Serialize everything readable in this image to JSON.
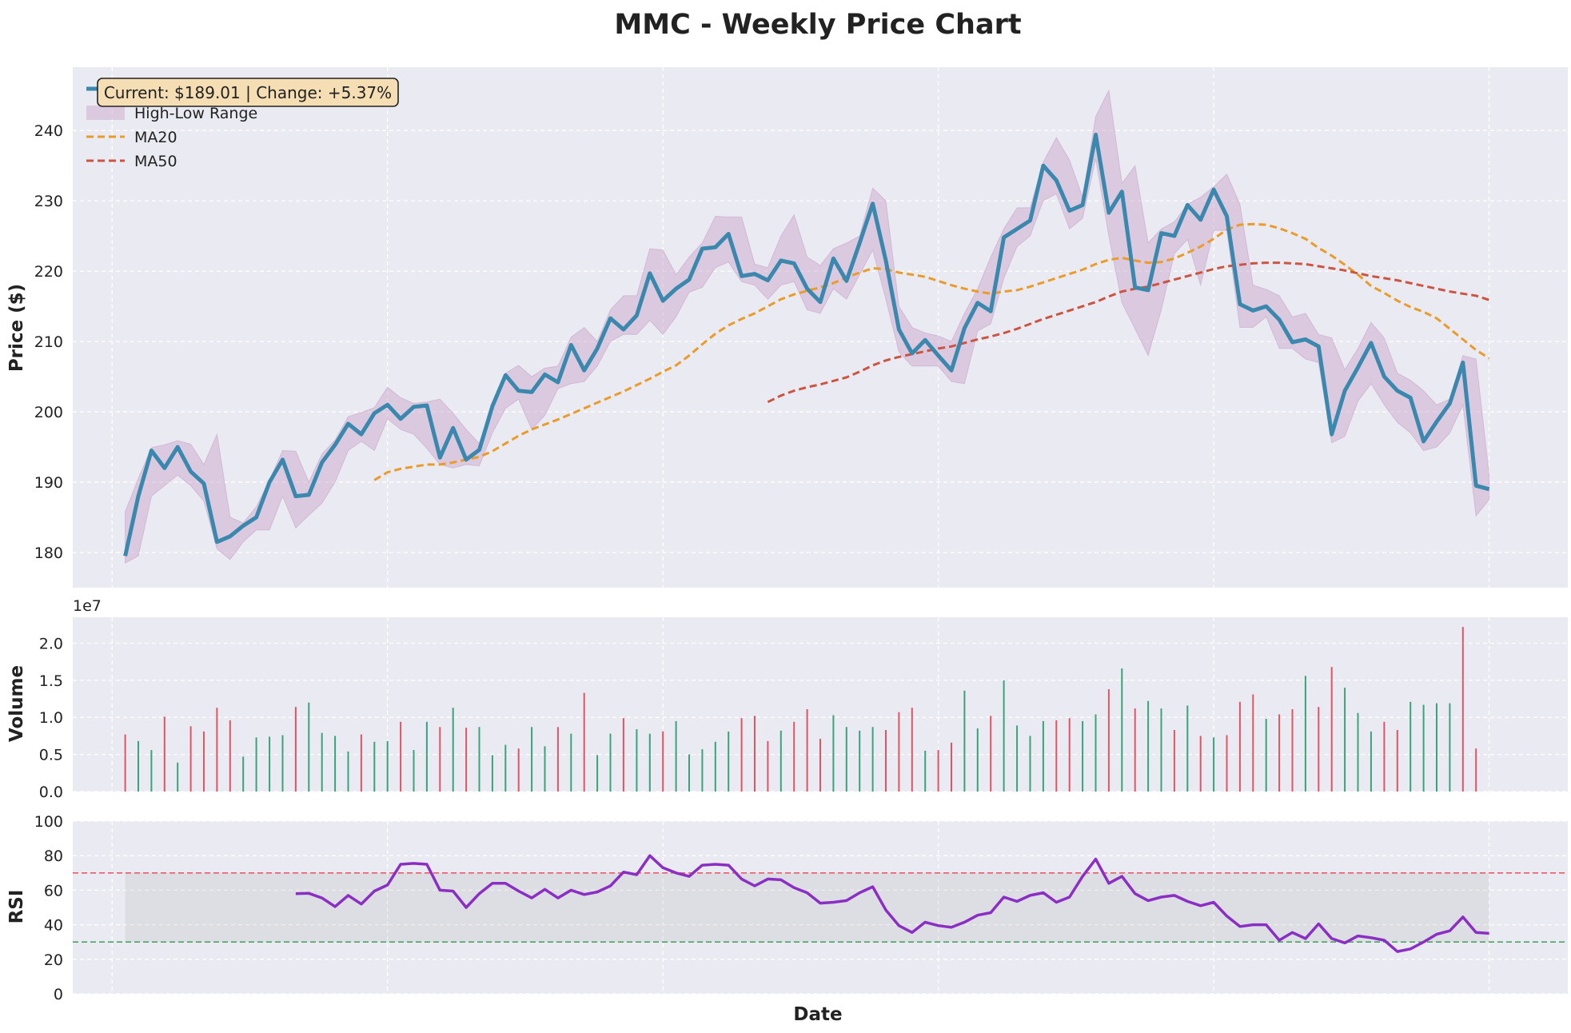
{
  "figure": {
    "title": "MMC - Weekly Price Chart",
    "xlabel": "Date",
    "info_box": "Current: $189.01 | Change: +5.37%"
  },
  "colors": {
    "background": "#eaeaf2",
    "grid": "#ffffff",
    "close": "#3a88ad",
    "range_fill": "#c7a2c7",
    "ma20": "#eb9b28",
    "ma50": "#cd5440",
    "volume_up": "#3aa37a",
    "volume_down": "#e05563",
    "rsi": "#8b2fc4",
    "overbought": "#ee5a6a",
    "oversold": "#4aa85e",
    "info_box_fill": "#f5deb3"
  },
  "legend": {
    "placement": "upper-left",
    "items": [
      "Close Price",
      "High-Low Range",
      "MA20",
      "MA50"
    ]
  },
  "chart_data": [
    {
      "type": "line",
      "panel": "price",
      "ylabel": "Price ($)",
      "ylim": [
        175,
        249
      ],
      "yticks": [
        180,
        190,
        200,
        210,
        220,
        230,
        240
      ],
      "x_index_range": [
        -4,
        110
      ],
      "series": [
        {
          "name": "Close Price",
          "values": [
            179.5,
            188.0,
            194.5,
            192.0,
            195.0,
            191.5,
            189.8,
            181.5,
            182.3,
            183.8,
            185.0,
            190.0,
            193.2,
            188.0,
            188.2,
            192.8,
            195.3,
            198.3,
            196.8,
            199.8,
            201.0,
            199.0,
            200.7,
            200.9,
            193.5,
            197.7,
            193.2,
            194.6,
            200.8,
            205.2,
            203.0,
            202.8,
            205.3,
            204.2,
            209.5,
            205.9,
            209.0,
            213.3,
            211.7,
            213.7,
            219.7,
            215.8,
            217.5,
            218.8,
            223.2,
            223.4,
            225.3,
            219.3,
            219.6,
            218.7,
            221.5,
            221.1,
            217.5,
            215.6,
            221.8,
            218.6,
            224.0,
            229.6,
            221.5,
            211.7,
            208.3,
            210.2,
            208.0,
            205.9,
            211.9,
            215.5,
            214.3,
            224.8,
            226.0,
            227.2,
            235.0,
            232.9,
            228.6,
            229.4,
            239.4,
            228.3,
            231.3,
            217.7,
            217.3,
            225.4,
            225.0,
            229.4,
            227.3,
            231.6,
            227.8,
            215.3,
            214.4,
            215.0,
            213.1,
            209.9,
            210.3,
            209.3,
            196.8,
            203.0,
            206.3,
            209.8,
            205.0,
            203.0,
            202.0,
            195.8,
            198.6,
            201.2,
            207.0,
            189.5,
            189.0
          ]
        },
        {
          "name": "High-Low Range",
          "high": [
            185.8,
            190.5,
            194.9,
            195.3,
            195.9,
            195.4,
            192.5,
            196.8,
            185.0,
            184.2,
            186.5,
            190.3,
            194.5,
            194.4,
            190.0,
            194.0,
            196.0,
            199.3,
            199.9,
            200.6,
            203.5,
            202.0,
            201.2,
            201.4,
            201.8,
            199.8,
            197.5,
            195.5,
            201.0,
            205.5,
            206.6,
            205.0,
            206.2,
            206.5,
            210.6,
            212.0,
            210.0,
            214.5,
            216.5,
            216.5,
            223.2,
            223.0,
            219.5,
            222.0,
            224.0,
            227.8,
            227.7,
            227.7,
            221.0,
            220.5,
            225.0,
            228.0,
            222.0,
            220.8,
            223.2,
            224.0,
            225.0,
            231.8,
            230.0,
            215.0,
            212.0,
            211.2,
            210.8,
            210.0,
            214.0,
            217.5,
            222.0,
            226.0,
            229.0,
            229.0,
            235.5,
            239.0,
            235.8,
            230.5,
            242.0,
            245.7,
            232.5,
            235.0,
            224.0,
            226.0,
            227.0,
            229.5,
            230.5,
            232.0,
            233.8,
            229.5,
            218.0,
            217.4,
            216.5,
            213.5,
            214.0,
            211.0,
            210.5,
            206.0,
            209.0,
            212.7,
            210.5,
            205.5,
            204.5,
            203.0,
            201.0,
            201.8,
            208.0,
            207.5,
            191.0
          ]
        },
        {
          "name": "High-Low Range",
          "low": [
            178.5,
            179.5,
            188.0,
            189.5,
            191.0,
            189.5,
            187.3,
            180.5,
            179.0,
            181.5,
            183.2,
            183.2,
            188.0,
            183.5,
            185.3,
            187.0,
            190.0,
            194.5,
            195.8,
            194.5,
            199.0,
            197.5,
            196.8,
            194.8,
            192.5,
            192.0,
            192.5,
            192.3,
            197.0,
            200.5,
            201.8,
            197.5,
            199.5,
            203.3,
            204.0,
            204.3,
            206.5,
            210.0,
            211.0,
            211.0,
            213.0,
            211.0,
            213.5,
            217.0,
            217.7,
            220.5,
            221.3,
            218.5,
            218.0,
            216.0,
            218.0,
            218.5,
            214.5,
            214.0,
            217.5,
            216.0,
            219.5,
            223.0,
            216.0,
            208.5,
            206.5,
            206.5,
            206.5,
            204.3,
            204.0,
            211.5,
            212.5,
            219.0,
            223.5,
            225.0,
            230.0,
            231.0,
            226.0,
            227.5,
            236.0,
            225.0,
            215.5,
            211.8,
            208.0,
            214.5,
            222.5,
            224.5,
            218.0,
            225.8,
            225.8,
            212.0,
            212.0,
            213.5,
            209.0,
            209.0,
            207.5,
            207.0,
            195.6,
            196.5,
            201.5,
            204.0,
            201.0,
            198.5,
            197.0,
            194.5,
            195.0,
            197.0,
            201.0,
            185.2,
            187.5
          ]
        },
        {
          "name": "MA20",
          "values": [
            null,
            null,
            null,
            null,
            null,
            null,
            null,
            null,
            null,
            null,
            null,
            null,
            null,
            null,
            null,
            null,
            null,
            null,
            null,
            190.3,
            191.4,
            191.9,
            192.2,
            192.5,
            192.5,
            192.8,
            193.2,
            193.6,
            194.4,
            195.5,
            196.6,
            197.5,
            198.2,
            198.9,
            199.7,
            200.5,
            201.3,
            202.1,
            202.9,
            203.8,
            204.7,
            205.7,
            206.6,
            208.0,
            209.6,
            211.1,
            212.3,
            213.2,
            214.0,
            215.0,
            216.0,
            216.7,
            217.2,
            217.7,
            218.3,
            219.1,
            219.8,
            220.4,
            220.3,
            219.8,
            219.5,
            219.2,
            218.6,
            218.0,
            217.5,
            217.1,
            216.8,
            217.1,
            217.3,
            217.8,
            218.4,
            219.0,
            219.6,
            220.2,
            221.0,
            221.6,
            221.9,
            221.5,
            221.2,
            221.3,
            221.8,
            222.6,
            223.5,
            224.6,
            225.9,
            226.6,
            226.7,
            226.6,
            226.1,
            225.4,
            224.6,
            223.3,
            222.2,
            220.9,
            219.5,
            217.9,
            216.9,
            215.8,
            214.9,
            214.2,
            213.3,
            211.8,
            210.3,
            208.8,
            207.6
          ]
        },
        {
          "name": "MA50",
          "values": [
            null,
            null,
            null,
            null,
            null,
            null,
            null,
            null,
            null,
            null,
            null,
            null,
            null,
            null,
            null,
            null,
            null,
            null,
            null,
            null,
            null,
            null,
            null,
            null,
            null,
            null,
            null,
            null,
            null,
            null,
            null,
            null,
            null,
            null,
            null,
            null,
            null,
            null,
            null,
            null,
            null,
            null,
            null,
            null,
            null,
            null,
            null,
            null,
            null,
            201.4,
            202.3,
            203.0,
            203.5,
            203.9,
            204.4,
            204.9,
            205.7,
            206.6,
            207.3,
            207.8,
            208.2,
            208.6,
            209.0,
            209.3,
            209.8,
            210.3,
            210.7,
            211.2,
            211.8,
            212.5,
            213.2,
            213.8,
            214.4,
            215.0,
            215.6,
            216.4,
            217.1,
            217.5,
            217.8,
            218.3,
            218.8,
            219.3,
            219.8,
            220.3,
            220.7,
            220.9,
            221.1,
            221.2,
            221.2,
            221.1,
            221.0,
            220.7,
            220.4,
            220.1,
            219.7,
            219.3,
            219.0,
            218.7,
            218.3,
            217.9,
            217.5,
            217.1,
            216.8,
            216.5,
            215.9
          ]
        }
      ]
    },
    {
      "type": "bar",
      "panel": "volume",
      "ylabel": "Volume",
      "scale_label": "1e7",
      "ylim": [
        0,
        2.35
      ],
      "yticks": [
        0.0,
        0.5,
        1.0,
        1.5,
        2.0
      ],
      "x_index_range": [
        -4,
        110
      ],
      "values": [
        0.77,
        0.68,
        0.56,
        1.01,
        0.39,
        0.88,
        0.81,
        1.13,
        0.96,
        0.47,
        0.73,
        0.74,
        0.76,
        1.14,
        1.2,
        0.79,
        0.75,
        0.54,
        0.77,
        0.67,
        0.68,
        0.94,
        0.56,
        0.94,
        0.87,
        1.13,
        0.86,
        0.87,
        0.49,
        0.63,
        0.58,
        0.87,
        0.61,
        0.87,
        0.78,
        1.33,
        0.49,
        0.78,
        0.99,
        0.84,
        0.78,
        0.81,
        0.95,
        0.5,
        0.57,
        0.67,
        0.81,
        0.99,
        1.02,
        0.68,
        0.82,
        0.94,
        1.11,
        0.71,
        1.03,
        0.87,
        0.82,
        0.87,
        0.83,
        1.07,
        1.13,
        0.55,
        0.56,
        0.66,
        1.36,
        0.85,
        1.02,
        1.5,
        0.89,
        0.75,
        0.95,
        0.96,
        0.99,
        0.95,
        1.04,
        1.38,
        1.66,
        1.12,
        1.22,
        1.12,
        0.83,
        1.16,
        0.75,
        0.73,
        0.76,
        1.21,
        1.31,
        0.98,
        1.04,
        1.11,
        1.56,
        1.14,
        1.68,
        1.4,
        1.06,
        0.81,
        0.94,
        0.83,
        1.21,
        1.17,
        1.19,
        1.19,
        2.22,
        0.58
      ],
      "direction": [
        "down",
        "up",
        "up",
        "down",
        "up",
        "down",
        "down",
        "down",
        "down",
        "up",
        "up",
        "up",
        "up",
        "down",
        "up",
        "up",
        "up",
        "up",
        "down",
        "up",
        "up",
        "down",
        "up",
        "up",
        "down",
        "up",
        "down",
        "up",
        "up",
        "up",
        "down",
        "up",
        "up",
        "down",
        "up",
        "down",
        "up",
        "up",
        "down",
        "up",
        "up",
        "down",
        "up",
        "up",
        "up",
        "up",
        "up",
        "down",
        "down",
        "down",
        "up",
        "down",
        "down",
        "down",
        "up",
        "up",
        "up",
        "up",
        "down",
        "down",
        "down",
        "up",
        "down",
        "down",
        "up",
        "up",
        "down",
        "up",
        "up",
        "up",
        "up",
        "down",
        "down",
        "up",
        "up",
        "down",
        "up",
        "down",
        "up",
        "up",
        "down",
        "up",
        "down",
        "up",
        "down",
        "down",
        "down",
        "up",
        "down",
        "down",
        "up",
        "down",
        "down",
        "up",
        "up",
        "up",
        "down",
        "down",
        "up",
        "up",
        "up",
        "up",
        "down",
        "down"
      ]
    },
    {
      "type": "line",
      "panel": "rsi",
      "ylabel": "RSI",
      "ylim": [
        0,
        100
      ],
      "yticks": [
        0,
        20,
        40,
        60,
        80,
        100
      ],
      "overbought": 70,
      "oversold": 30,
      "x_index_range": [
        -4,
        110
      ],
      "series": [
        {
          "name": "RSI",
          "values": [
            null,
            null,
            null,
            null,
            null,
            null,
            null,
            null,
            null,
            null,
            null,
            null,
            null,
            58.0,
            58.2,
            55.5,
            50.5,
            57.0,
            52.0,
            59.5,
            63.0,
            75.0,
            75.5,
            75.0,
            60.0,
            59.5,
            50.0,
            58.0,
            64.0,
            64.0,
            59.5,
            55.5,
            60.5,
            55.5,
            60.0,
            57.5,
            59.0,
            62.5,
            70.5,
            69.0,
            80.0,
            73.0,
            70.0,
            68.0,
            74.5,
            75.0,
            74.5,
            66.5,
            62.5,
            66.5,
            66.0,
            61.5,
            58.5,
            52.5,
            53.0,
            54.0,
            58.5,
            62.0,
            48.5,
            39.5,
            35.5,
            41.5,
            39.5,
            38.5,
            41.5,
            45.5,
            47.0,
            56.0,
            53.5,
            57.0,
            58.5,
            53.0,
            56.0,
            68.0,
            78.0,
            64.0,
            68.0,
            58.0,
            54.0,
            56.0,
            57.0,
            53.5,
            51.0,
            53.0,
            45.0,
            39.0,
            40.0,
            40.0,
            31.0,
            35.5,
            32.0,
            40.5,
            32.0,
            29.5,
            33.5,
            32.5,
            31.0,
            24.5,
            26.0,
            30.0,
            34.5,
            36.5,
            44.5,
            35.5,
            35.0
          ]
        }
      ]
    }
  ]
}
